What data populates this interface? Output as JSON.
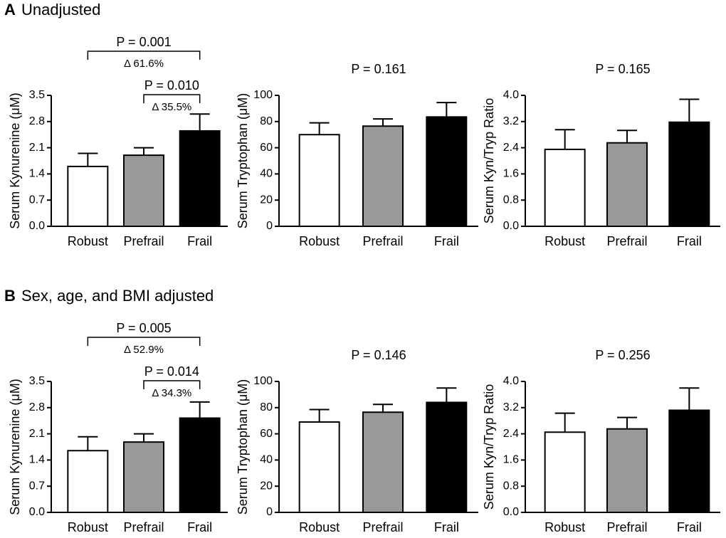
{
  "panels": [
    {
      "letter": "A",
      "title": "Unadjusted"
    },
    {
      "letter": "B",
      "title": "Sex, age, and BMI adjusted"
    }
  ],
  "chart_data": [
    {
      "type": "bar",
      "ylabel": "Serum Kynurenine (μM)",
      "categories": [
        "Robust",
        "Prefrail",
        "Frail"
      ],
      "values": [
        1.6,
        1.9,
        2.55
      ],
      "errors": [
        0.35,
        0.2,
        0.45
      ],
      "colors": [
        "#ffffff",
        "#999999",
        "#000000"
      ],
      "ylim": [
        0,
        3.5
      ],
      "yticks": [
        {
          "value": 0,
          "label": "0.0"
        },
        0.7,
        1.4,
        2.1,
        2.8,
        3.5
      ],
      "annotations": [
        {
          "p": "P = 0.001",
          "delta": "Δ 61.6%"
        },
        {
          "p": "P = 0.010",
          "delta": "Δ 35.5%"
        }
      ]
    },
    {
      "type": "bar",
      "title": "P = 0.161",
      "ylabel": "Serum Tryptophan (μM)",
      "categories": [
        "Robust",
        "Prefrail",
        "Frail"
      ],
      "values": [
        70,
        76.5,
        83.5
      ],
      "errors": [
        9,
        5.5,
        11
      ],
      "colors": [
        "#ffffff",
        "#999999",
        "#000000"
      ],
      "ylim": [
        0,
        100
      ],
      "yticks": [
        0,
        20,
        40,
        60,
        80,
        100
      ]
    },
    {
      "type": "bar",
      "title": "P = 0.165",
      "ylabel": "Serum Kyn/Tryp Ratio",
      "categories": [
        "Robust",
        "Prefrail",
        "Frail"
      ],
      "values": [
        2.35,
        2.55,
        3.18
      ],
      "errors": [
        0.6,
        0.38,
        0.7
      ],
      "colors": [
        "#ffffff",
        "#999999",
        "#000000"
      ],
      "ylim": [
        0,
        4
      ],
      "yticks": [
        {
          "value": 0,
          "label": "0.0"
        },
        0.8,
        1.6,
        2.4,
        3.2,
        {
          "value": 4,
          "label": "4.0"
        }
      ]
    },
    {
      "type": "bar",
      "ylabel": "Serum Kynurenine (μM)",
      "categories": [
        "Robust",
        "Prefrail",
        "Frail"
      ],
      "values": [
        1.65,
        1.88,
        2.52
      ],
      "errors": [
        0.37,
        0.22,
        0.43
      ],
      "colors": [
        "#ffffff",
        "#999999",
        "#000000"
      ],
      "ylim": [
        0,
        3.5
      ],
      "yticks": [
        {
          "value": 0,
          "label": "0.0"
        },
        0.7,
        1.4,
        2.1,
        2.8,
        3.5
      ],
      "annotations": [
        {
          "p": "P = 0.005",
          "delta": "Δ 52.9%"
        },
        {
          "p": "P = 0.014",
          "delta": "Δ 34.3%"
        }
      ]
    },
    {
      "type": "bar",
      "title": "P = 0.146",
      "ylabel": "Serum Tryptophan (μM)",
      "categories": [
        "Robust",
        "Prefrail",
        "Frail"
      ],
      "values": [
        69,
        76.5,
        84
      ],
      "errors": [
        9.5,
        6,
        11
      ],
      "colors": [
        "#ffffff",
        "#999999",
        "#000000"
      ],
      "ylim": [
        0,
        100
      ],
      "yticks": [
        0,
        20,
        40,
        60,
        80,
        100
      ]
    },
    {
      "type": "bar",
      "title": "P = 0.256",
      "ylabel": "Serum Kyn/Tryp Ratio",
      "categories": [
        "Robust",
        "Prefrail",
        "Frail"
      ],
      "values": [
        2.45,
        2.55,
        3.12
      ],
      "errors": [
        0.58,
        0.35,
        0.68
      ],
      "colors": [
        "#ffffff",
        "#999999",
        "#000000"
      ],
      "ylim": [
        0,
        4
      ],
      "yticks": [
        {
          "value": 0,
          "label": "0.0"
        },
        0.8,
        1.6,
        2.4,
        3.2,
        {
          "value": 4,
          "label": "4.0"
        }
      ]
    }
  ]
}
